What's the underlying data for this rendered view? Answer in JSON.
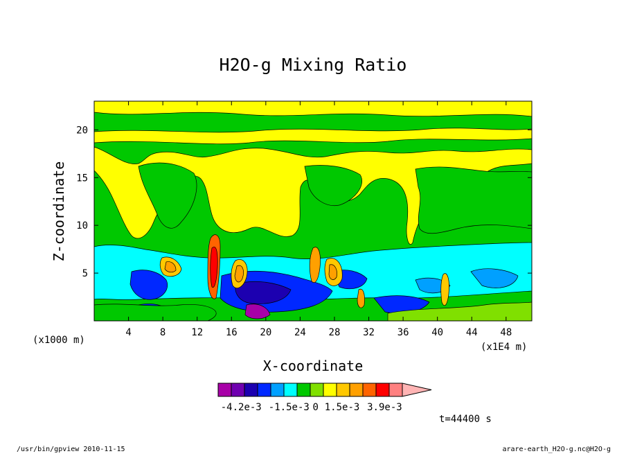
{
  "chart_data": {
    "type": "heatmap",
    "title": "H2O-g Mixing Ratio",
    "xlabel": "X-coordinate",
    "ylabel": "Z-coordinate",
    "x_unit_left": "(x1000 m)",
    "x_unit_right": "(x1E4 m)",
    "xlim": [
      0,
      51
    ],
    "ylim": [
      0,
      23
    ],
    "x_ticks": [
      "4",
      "8",
      "12",
      "16",
      "20",
      "24",
      "28",
      "32",
      "36",
      "40",
      "44",
      "48"
    ],
    "y_ticks": [
      "5",
      "10",
      "15",
      "20"
    ],
    "x_tick_values": [
      4,
      8,
      12,
      16,
      20,
      24,
      28,
      32,
      36,
      40,
      44,
      48
    ],
    "y_tick_values": [
      5,
      10,
      15,
      20
    ],
    "colorbar": {
      "colors": [
        "#a800a8",
        "#7000b0",
        "#1c00b0",
        "#0028ff",
        "#00a0ff",
        "#00ffff",
        "#00c800",
        "#80e000",
        "#ffff00",
        "#ffc800",
        "#ffa000",
        "#ff6400",
        "#ff0000",
        "#ff8080",
        "#ffb4b4"
      ],
      "labels": [
        "-4.2e-3",
        "-1.5e-3",
        "0",
        "1.5e-3",
        "3.9e-3"
      ],
      "label_values": [
        -0.0042,
        -0.0015,
        0,
        0.0015,
        0.0039
      ]
    },
    "time_label": "t=44400 s",
    "footer_left": "/usr/bin/gpview  2010-11-15",
    "footer_right": "arare-earth_H2O-g.nc@H2O-g"
  }
}
